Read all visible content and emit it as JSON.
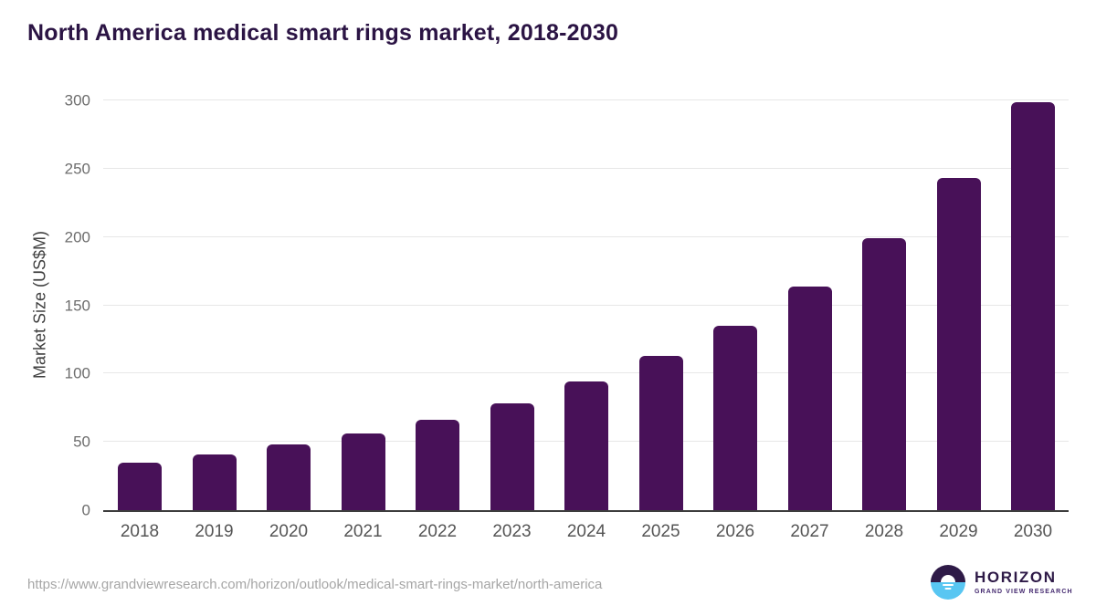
{
  "page": {
    "title": "North America medical smart rings market, 2018-2030",
    "source_url": "https://www.grandviewresearch.com/horizon/outlook/medical-smart-rings-market/north-america"
  },
  "chart_data": {
    "type": "bar",
    "title": "North America medical smart rings market, 2018-2030",
    "categories": [
      "2018",
      "2019",
      "2020",
      "2021",
      "2022",
      "2023",
      "2024",
      "2025",
      "2026",
      "2027",
      "2028",
      "2029",
      "2030"
    ],
    "values": [
      35,
      41,
      48,
      56,
      66,
      78,
      94,
      113,
      135,
      164,
      199,
      243,
      299
    ],
    "xlabel": "",
    "ylabel": "Market Size (US$M)",
    "ylim": [
      0,
      300
    ],
    "yticks": [
      0,
      50,
      100,
      150,
      200,
      250,
      300
    ],
    "grid": true,
    "legend": "none",
    "bar_color": "#481158",
    "title_color": "#2b1444",
    "gridline_color": "#e7e7e7",
    "axis_line_color": "#3d3d3d"
  },
  "branding": {
    "logo_text": "HORIZON",
    "logo_subtext": "GRAND VIEW RESEARCH",
    "logo_purple": "#2e1a47",
    "logo_blue": "#58c6f2",
    "logo_subtext_color": "#452a70"
  }
}
